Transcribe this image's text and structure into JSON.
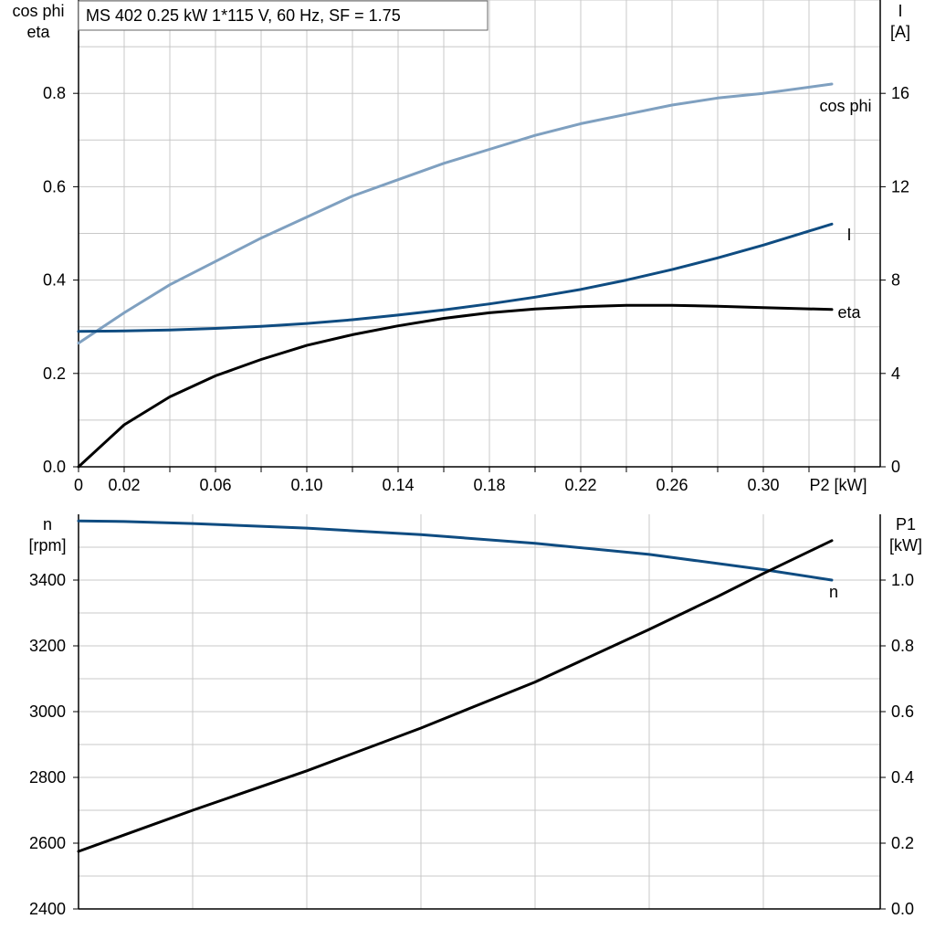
{
  "title": "MS 402   0.25 kW   1*115 V, 60 Hz, SF = 1.75",
  "colors": {
    "cos_phi": "#7fa0c0",
    "current": "#0f4c81",
    "speed": "#0f4c81",
    "eta": "#000000",
    "p1": "#000000",
    "grid": "#c8c8c8",
    "axis": "#000000"
  },
  "chart_data": [
    {
      "type": "line",
      "title": "MS 402   0.25 kW   1*115 V, 60 Hz, SF = 1.75",
      "xlabel": "P2 [kW]",
      "x_ticks": [
        "0",
        "0.02",
        "0.06",
        "0.10",
        "0.14",
        "0.18",
        "0.22",
        "0.26",
        "0.30"
      ],
      "xlim": [
        0,
        0.35
      ],
      "y_left_label_lines": [
        "cos phi",
        "eta"
      ],
      "y_left_ticks": [
        "0.0",
        "0.2",
        "0.4",
        "0.6",
        "0.8"
      ],
      "y_left_lim": [
        0,
        1.0
      ],
      "y_right_label_lines": [
        "I",
        "[A]"
      ],
      "y_right_ticks": [
        "0",
        "4",
        "8",
        "12",
        "16"
      ],
      "y_right_lim": [
        0,
        20
      ],
      "grid": true,
      "series": [
        {
          "name": "cos phi",
          "axis": "left",
          "color_key": "cos_phi",
          "x": [
            0,
            0.02,
            0.04,
            0.06,
            0.08,
            0.1,
            0.12,
            0.14,
            0.16,
            0.18,
            0.2,
            0.22,
            0.24,
            0.26,
            0.28,
            0.3,
            0.33
          ],
          "y": [
            0.265,
            0.33,
            0.39,
            0.44,
            0.49,
            0.535,
            0.58,
            0.615,
            0.65,
            0.68,
            0.71,
            0.735,
            0.755,
            0.775,
            0.79,
            0.8,
            0.82
          ]
        },
        {
          "name": "I",
          "axis": "right",
          "color_key": "current",
          "x": [
            0,
            0.02,
            0.04,
            0.06,
            0.08,
            0.1,
            0.12,
            0.14,
            0.16,
            0.18,
            0.2,
            0.22,
            0.24,
            0.26,
            0.28,
            0.3,
            0.33
          ],
          "y": [
            5.8,
            5.82,
            5.86,
            5.93,
            6.02,
            6.14,
            6.3,
            6.5,
            6.72,
            6.98,
            7.27,
            7.6,
            8.0,
            8.45,
            8.95,
            9.5,
            10.4
          ]
        },
        {
          "name": "eta",
          "axis": "left",
          "color_key": "eta",
          "x": [
            0,
            0.02,
            0.04,
            0.06,
            0.08,
            0.1,
            0.12,
            0.14,
            0.16,
            0.18,
            0.2,
            0.22,
            0.24,
            0.26,
            0.28,
            0.3,
            0.33
          ],
          "y": [
            0.0,
            0.09,
            0.15,
            0.195,
            0.23,
            0.26,
            0.283,
            0.302,
            0.318,
            0.33,
            0.338,
            0.343,
            0.346,
            0.346,
            0.344,
            0.341,
            0.337
          ]
        }
      ]
    },
    {
      "type": "line",
      "xlim": [
        0,
        0.35
      ],
      "y_left_label_lines": [
        "n",
        "[rpm]"
      ],
      "y_left_ticks": [
        "2400",
        "2600",
        "2800",
        "3000",
        "3200",
        "3400"
      ],
      "y_left_lim": [
        2400,
        3600
      ],
      "y_right_label_lines": [
        "P1",
        "[kW]"
      ],
      "y_right_ticks": [
        "0.0",
        "0.2",
        "0.4",
        "0.6",
        "0.8",
        "1.0"
      ],
      "y_right_lim": [
        0,
        1.2
      ],
      "grid": true,
      "series": [
        {
          "name": "n",
          "axis": "left",
          "color_key": "speed",
          "x": [
            0,
            0.02,
            0.05,
            0.1,
            0.15,
            0.2,
            0.25,
            0.3,
            0.33
          ],
          "y": [
            3580,
            3578,
            3572,
            3558,
            3538,
            3512,
            3478,
            3432,
            3400
          ]
        },
        {
          "axis": "right",
          "color_key": "p1",
          "x": [
            0,
            0.05,
            0.1,
            0.15,
            0.2,
            0.25,
            0.28,
            0.3,
            0.33
          ],
          "y": [
            0.175,
            0.3,
            0.42,
            0.55,
            0.69,
            0.85,
            0.95,
            1.02,
            1.12
          ]
        }
      ]
    }
  ]
}
